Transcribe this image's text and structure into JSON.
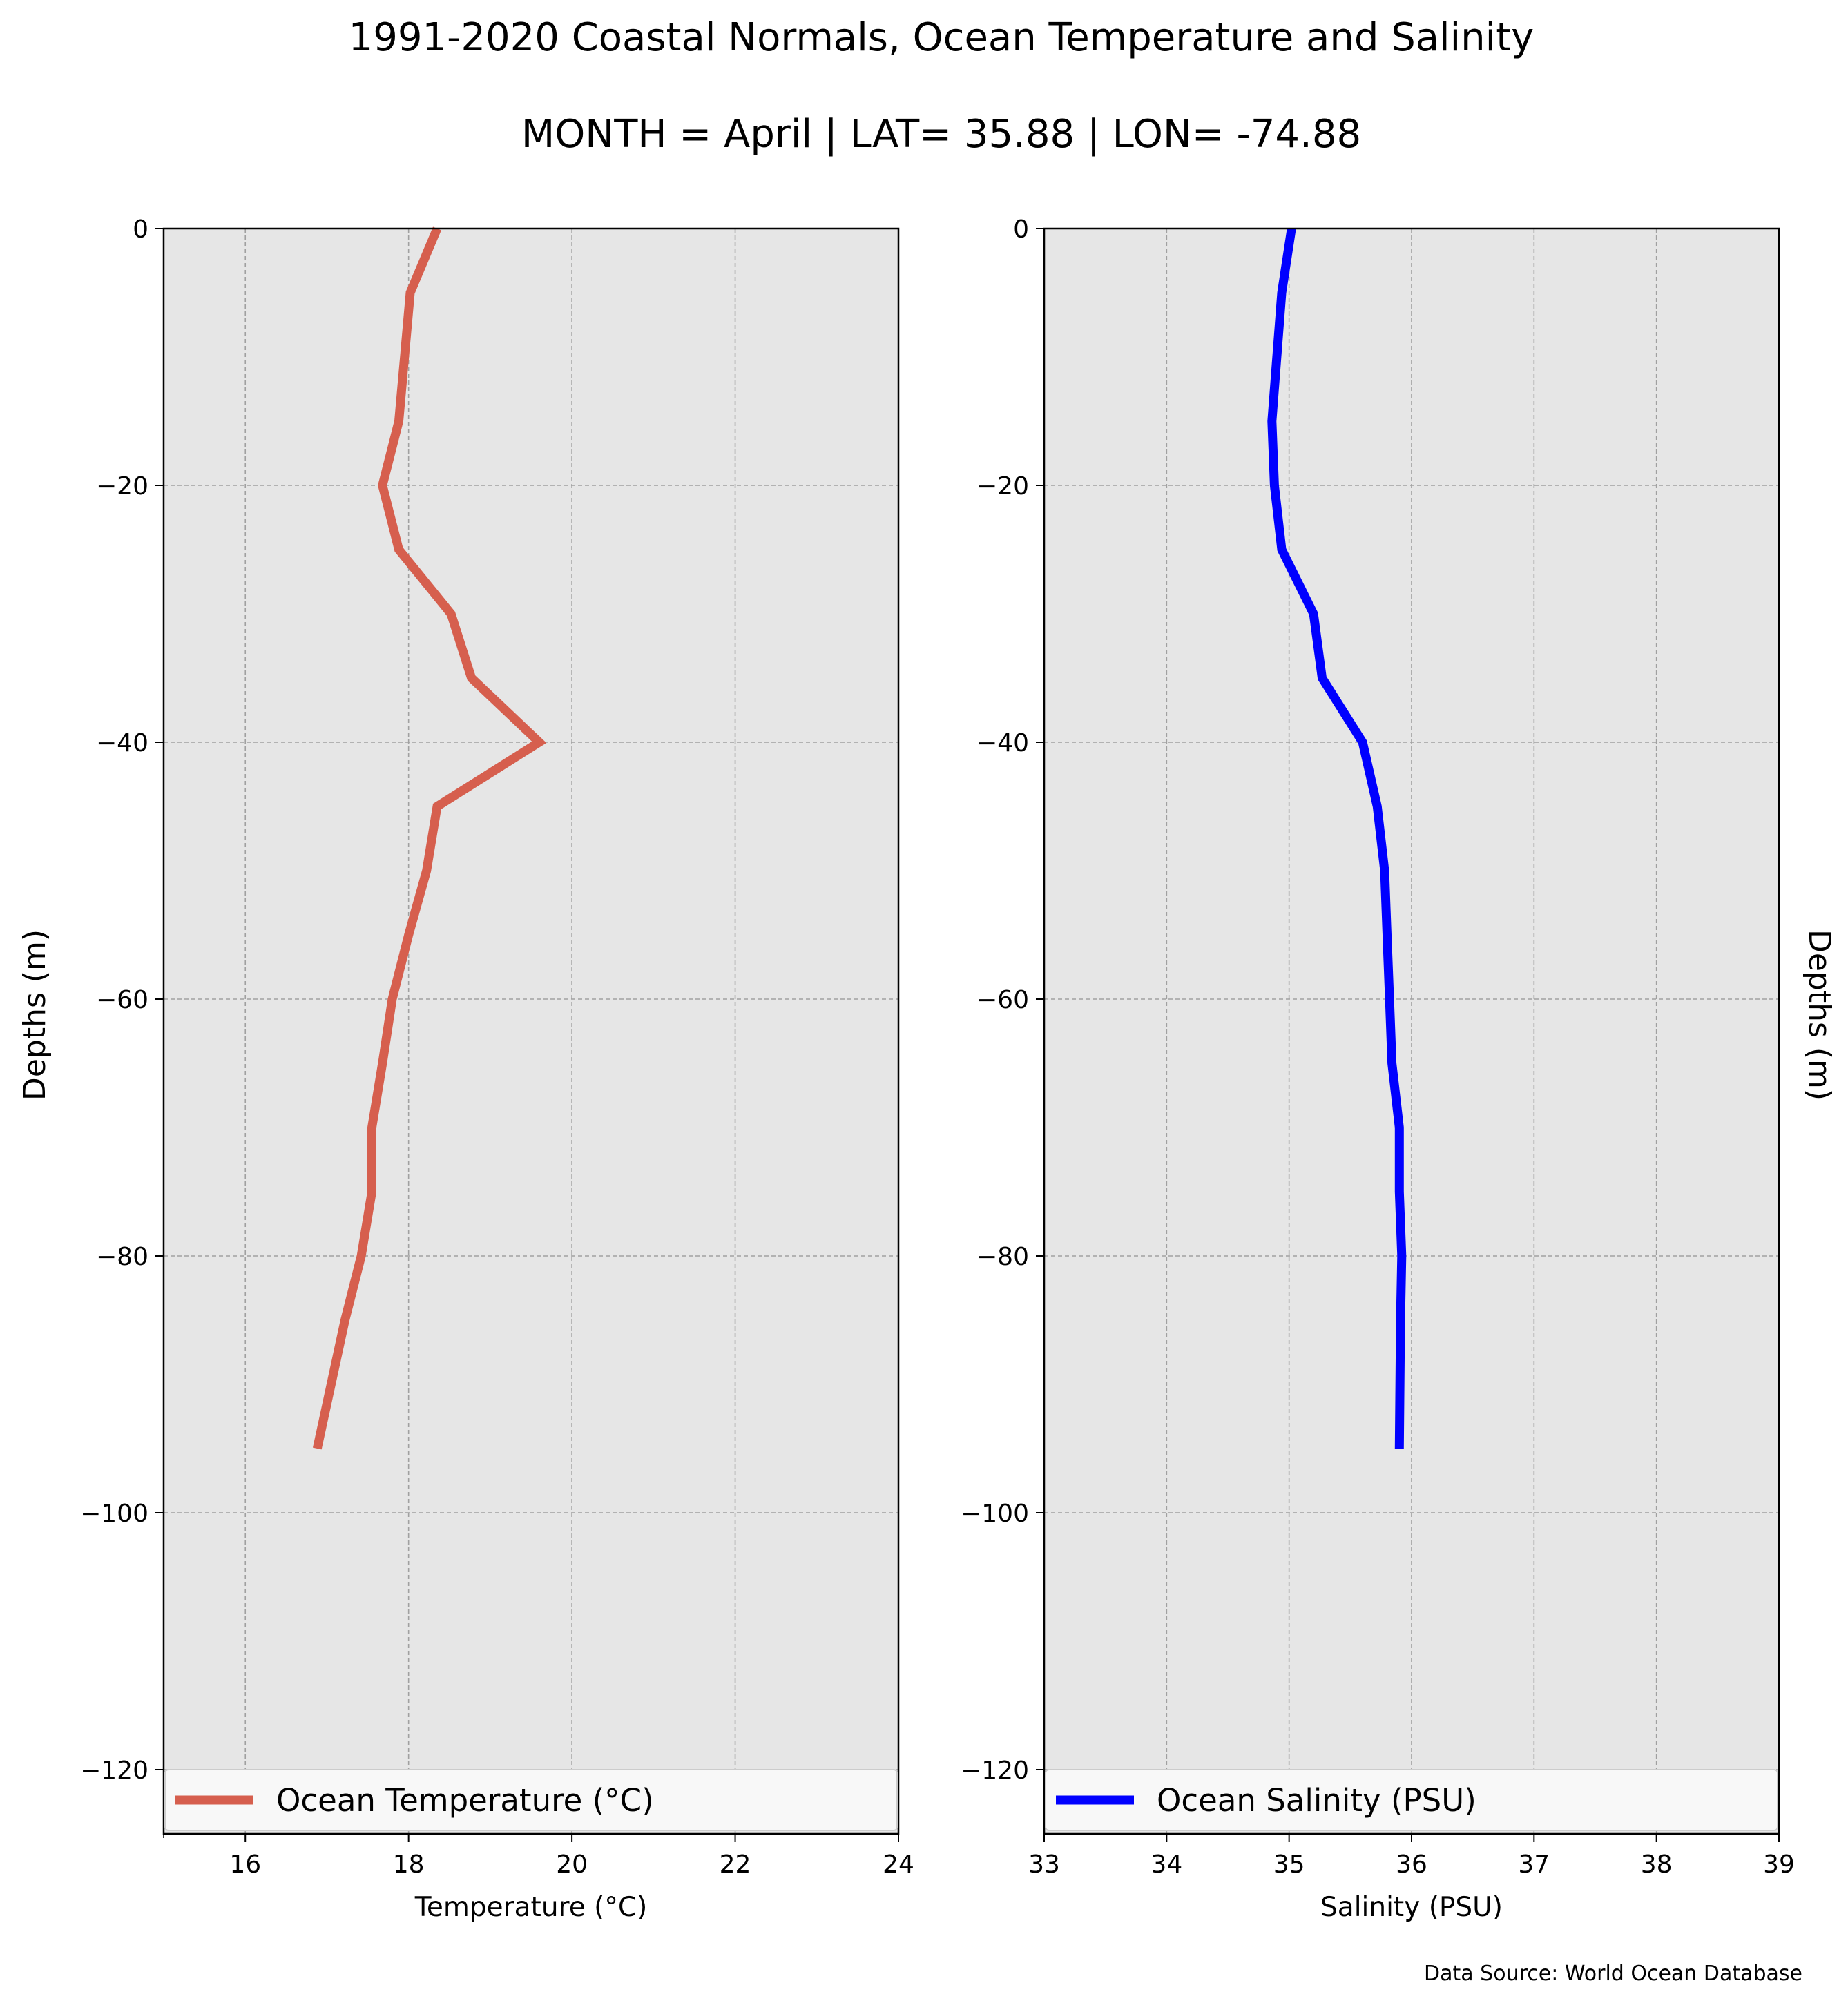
{
  "title_line1": "1991-2020 Coastal Normals, Ocean Temperature and Salinity",
  "title_line2": "MONTH = April | LAT= 35.88 | LON= -74.88",
  "source_note": "Data Source: World Ocean Database",
  "colors": {
    "temperature": "#d65f4e",
    "salinity": "#0000ff",
    "axes_bg": "#e6e6e6",
    "grid": "#a0a0a0"
  },
  "chart_data": [
    {
      "type": "line",
      "xlabel": "Temperature ($^\\circ$C)",
      "xlabel_display": "Temperature (°C)",
      "ylabel": "Depths (m)",
      "xlim": [
        15,
        24
      ],
      "ylim": [
        -125,
        0
      ],
      "xticks": [
        16,
        18,
        20,
        22,
        24
      ],
      "xtick_labels": [
        "16",
        "18",
        "20",
        "22",
        "24"
      ],
      "yticks": [
        0,
        -20,
        -40,
        -60,
        -80,
        -100,
        -120
      ],
      "ytick_labels": [
        "0",
        "−20",
        "−40",
        "−60",
        "−80",
        "−100",
        "−120"
      ],
      "grid": true,
      "legend_position": "lower-center",
      "series": [
        {
          "name": "Ocean Temperature (°C)",
          "x": [
            18.35,
            18.02,
            17.88,
            17.68,
            17.88,
            18.52,
            18.77,
            19.6,
            18.35,
            18.22,
            18.0,
            17.8,
            17.68,
            17.55,
            17.55,
            17.42,
            17.22,
            17.05,
            16.88
          ],
          "y": [
            0,
            -5,
            -15,
            -20,
            -25,
            -30,
            -35,
            -40,
            -45,
            -50,
            -55,
            -60,
            -65,
            -70,
            -75,
            -80,
            -85,
            -90,
            -95
          ]
        }
      ]
    },
    {
      "type": "line",
      "xlabel": "Salinity (PSU)",
      "ylabel": "Depths (m)",
      "xlim": [
        33,
        39
      ],
      "ylim": [
        -125,
        0
      ],
      "xticks": [
        33,
        34,
        35,
        36,
        37,
        38,
        39
      ],
      "xtick_labels": [
        "33",
        "34",
        "35",
        "36",
        "37",
        "38",
        "39"
      ],
      "yticks": [
        0,
        -20,
        -40,
        -60,
        -80,
        -100,
        -120
      ],
      "ytick_labels": [
        "0",
        "−20",
        "−40",
        "−60",
        "−80",
        "−100",
        "−120"
      ],
      "grid": true,
      "legend_position": "lower-center",
      "series": [
        {
          "name": "Ocean Salinity (PSU)",
          "x": [
            35.02,
            34.94,
            34.9,
            34.86,
            34.88,
            34.94,
            35.2,
            35.27,
            35.6,
            35.72,
            35.78,
            35.8,
            35.82,
            35.84,
            35.9,
            35.9,
            35.92,
            35.91,
            35.9
          ],
          "y": [
            0,
            -5,
            -10,
            -15,
            -20,
            -25,
            -30,
            -35,
            -40,
            -45,
            -50,
            -55,
            -60,
            -65,
            -70,
            -75,
            -80,
            -85,
            -95
          ]
        }
      ]
    }
  ]
}
